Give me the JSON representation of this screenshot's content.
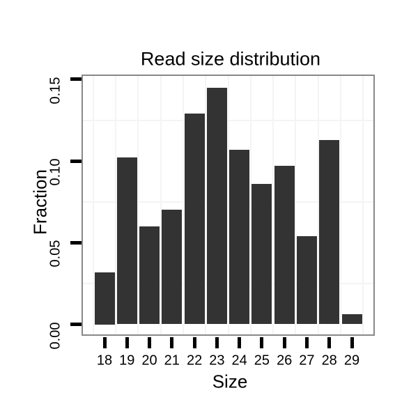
{
  "chart_data": {
    "type": "bar",
    "title": "Read size distribution",
    "xlabel": "Size",
    "ylabel": "Fraction",
    "categories": [
      "18",
      "19",
      "20",
      "21",
      "22",
      "23",
      "24",
      "25",
      "26",
      "27",
      "28",
      "29"
    ],
    "values": [
      0.032,
      0.102,
      0.06,
      0.07,
      0.129,
      0.145,
      0.107,
      0.086,
      0.097,
      0.054,
      0.113,
      0.006
    ],
    "y_ticks": [
      0.0,
      0.05,
      0.1,
      0.15
    ],
    "y_tick_labels": [
      "0.00",
      "0.05",
      "0.10",
      "0.15"
    ],
    "ylim": [
      -0.008,
      0.153
    ],
    "grid": "minor-only",
    "legend": "none",
    "bar_relative_width": 0.9,
    "colors": {
      "bar_fill": "#333333",
      "panel_border": "#888888",
      "grid_minor": "#f4f4f4",
      "tick": "#000000",
      "text": "#000000",
      "background": "#ffffff"
    }
  }
}
